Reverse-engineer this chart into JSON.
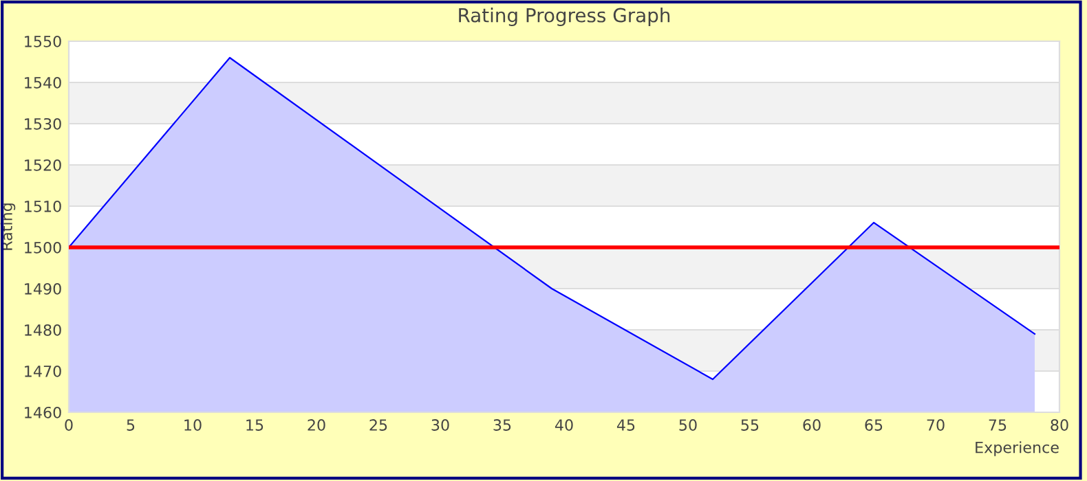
{
  "chart_data": {
    "type": "area",
    "title": "Rating Progress Graph",
    "xlabel": "Experience",
    "ylabel": "Rating",
    "x": [
      0,
      13,
      39,
      52,
      65,
      78
    ],
    "series": [
      {
        "color": "#0000ff",
        "values": [
          1500,
          1546,
          1490,
          1468,
          1506,
          1479
        ]
      }
    ],
    "xlim": [
      0,
      80
    ],
    "xticks": [
      0,
      5,
      10,
      15,
      20,
      25,
      30,
      35,
      40,
      45,
      50,
      55,
      60,
      65,
      70,
      75,
      80
    ],
    "ylim": [
      1460,
      1550
    ],
    "yticks": [
      1460,
      1470,
      1480,
      1490,
      1500,
      1510,
      1520,
      1530,
      1540,
      1550
    ],
    "ref_lines": [
      {
        "axis": "y",
        "value": 1500,
        "color": "#ff0000"
      }
    ],
    "grid": "y",
    "legend": false
  }
}
